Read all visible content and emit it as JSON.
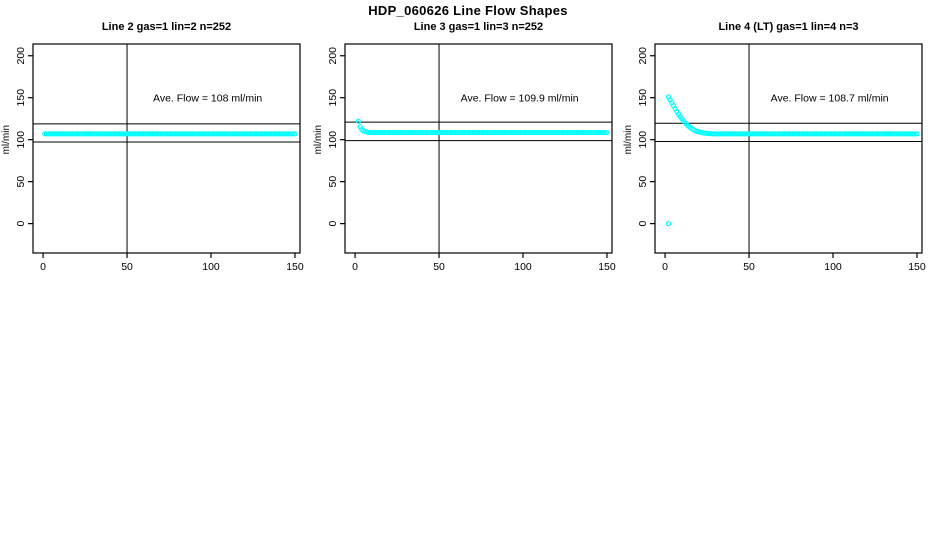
{
  "title": "HDP_060626  Line Flow Shapes",
  "chart_data": [
    {
      "type": "scatter",
      "id": "line2",
      "title": "Line 2 gas=1 lin=2 n=252",
      "annotation": "Ave. Flow =  108  ml/min",
      "ave_flow_ml_min": 108,
      "n_points": 252,
      "xlabel": "",
      "ylabel": "ml/min",
      "xticks": [
        0,
        50,
        100,
        150
      ],
      "yticks": [
        0,
        50,
        100,
        150,
        200
      ],
      "xlim": [
        -6,
        153
      ],
      "ylim": [
        -35,
        214
      ],
      "grid": false,
      "vline_x": 50,
      "hlines": [
        97.2,
        118.8
      ],
      "marker": {
        "shape": "open-circle",
        "color": "#00FFFF",
        "radius": 2
      },
      "series": [
        {
          "name": "flow",
          "segments": [
            {
              "run": {
                "from": 1,
                "to": 150,
                "step": 1,
                "y": 107
              }
            }
          ]
        }
      ]
    },
    {
      "type": "scatter",
      "id": "line3",
      "title": "Line 3 gas=1 lin=3 n=252",
      "annotation": "Ave. Flow =  109.9  ml/min",
      "ave_flow_ml_min": 109.9,
      "n_points": 252,
      "xlabel": "",
      "ylabel": "ml/min",
      "xticks": [
        0,
        50,
        100,
        150
      ],
      "yticks": [
        0,
        50,
        100,
        150,
        200
      ],
      "xlim": [
        -6,
        153
      ],
      "ylim": [
        -35,
        214
      ],
      "grid": false,
      "vline_x": 50,
      "hlines": [
        98.9,
        120.9
      ],
      "marker": {
        "shape": "open-circle",
        "color": "#00FFFF",
        "radius": 2
      },
      "series": [
        {
          "name": "flow",
          "segments": [
            {
              "points": [
                [
                  2,
                  122
                ],
                [
                  3,
                  115.5
                ],
                [
                  4,
                  112
                ],
                [
                  5,
                  110.5
                ],
                [
                  6,
                  109.8
                ],
                [
                  7,
                  109.4
                ]
              ]
            },
            {
              "run": {
                "from": 8,
                "to": 150,
                "step": 1,
                "y": 108.5
              }
            }
          ]
        }
      ]
    },
    {
      "type": "scatter",
      "id": "line4",
      "title": "Line 4 (LT) gas=1 lin=4 n=3",
      "annotation": "Ave. Flow =  108.7  ml/min",
      "ave_flow_ml_min": 108.7,
      "n_points": 3,
      "xlabel": "",
      "ylabel": "ml/min",
      "xticks": [
        0,
        50,
        100,
        150
      ],
      "yticks": [
        0,
        50,
        100,
        150,
        200
      ],
      "xlim": [
        -6,
        153
      ],
      "ylim": [
        -35,
        214
      ],
      "grid": false,
      "vline_x": 50,
      "hlines": [
        97.8,
        119.6
      ],
      "marker": {
        "shape": "open-circle",
        "color": "#00FFFF",
        "radius": 2
      },
      "series": [
        {
          "name": "flow",
          "segments": [
            {
              "points": [
                [
                  2,
                  0
                ]
              ]
            },
            {
              "points": [
                [
                  2,
                  151
                ],
                [
                  3,
                  147.5
                ],
                [
                  4,
                  144
                ],
                [
                  5,
                  140.5
                ],
                [
                  6,
                  137
                ],
                [
                  7,
                  133.5
                ],
                [
                  8,
                  130.5
                ],
                [
                  9,
                  127.5
                ],
                [
                  10,
                  125
                ],
                [
                  11,
                  122.5
                ],
                [
                  12,
                  120
                ],
                [
                  13,
                  118
                ],
                [
                  14,
                  116
                ],
                [
                  15,
                  114.5
                ],
                [
                  16,
                  113
                ],
                [
                  17,
                  111.8
                ],
                [
                  18,
                  110.8
                ],
                [
                  19,
                  110
                ],
                [
                  20,
                  109.3
                ],
                [
                  21,
                  108.8
                ],
                [
                  22,
                  108.4
                ],
                [
                  23,
                  108
                ],
                [
                  24,
                  107.7
                ],
                [
                  25,
                  107.5
                ],
                [
                  26,
                  107.3
                ],
                [
                  27,
                  107.2
                ],
                [
                  28,
                  107.1
                ],
                [
                  29,
                  107
                ],
                [
                  30,
                  107
                ]
              ]
            },
            {
              "run": {
                "from": 31,
                "to": 150,
                "step": 1,
                "y": 107
              }
            }
          ]
        }
      ]
    }
  ]
}
